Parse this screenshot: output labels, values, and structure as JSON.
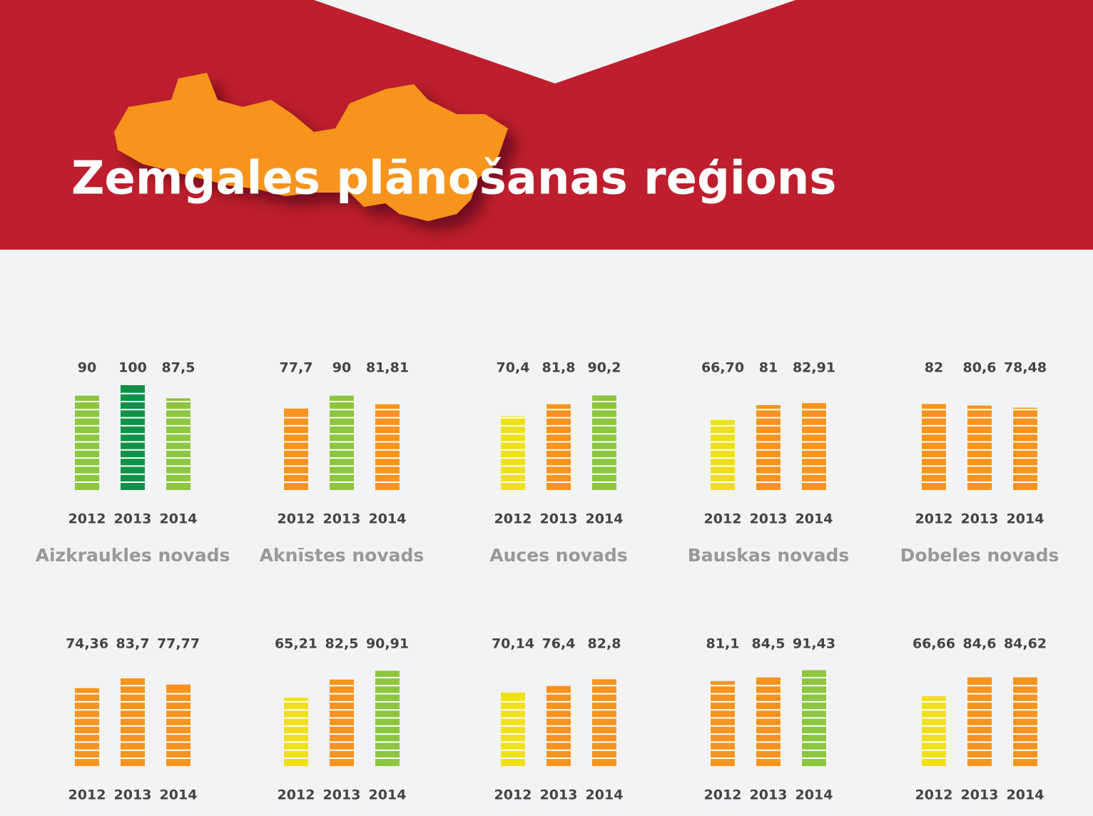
{
  "title": "Zemgales plānošanas reģions",
  "chart_data": [
    {
      "type": "bar",
      "title": "Aizkraukles novads",
      "categories": [
        "2012",
        "2013",
        "2014"
      ],
      "values": [
        90,
        100,
        87.5
      ],
      "value_labels": [
        "90",
        "100",
        "87,5"
      ],
      "colors": [
        "#8dc63f",
        "#0f9146",
        "#8dc63f"
      ],
      "ylim": [
        0,
        100
      ]
    },
    {
      "type": "bar",
      "title": "Aknīstes novads",
      "categories": [
        "2012",
        "2013",
        "2014"
      ],
      "values": [
        77.7,
        90,
        81.81
      ],
      "value_labels": [
        "77,7",
        "90",
        "81,81"
      ],
      "colors": [
        "#f7941d",
        "#8dc63f",
        "#f7941d"
      ],
      "ylim": [
        0,
        100
      ]
    },
    {
      "type": "bar",
      "title": "Auces novads",
      "categories": [
        "2012",
        "2013",
        "2014"
      ],
      "values": [
        70.4,
        81.8,
        90.2
      ],
      "value_labels": [
        "70,4",
        "81,8",
        "90,2"
      ],
      "colors": [
        "#f0e01a",
        "#f7941d",
        "#8dc63f"
      ],
      "ylim": [
        0,
        100
      ]
    },
    {
      "type": "bar",
      "title": "Bauskas novads",
      "categories": [
        "2012",
        "2013",
        "2014"
      ],
      "values": [
        66.7,
        81,
        82.91
      ],
      "value_labels": [
        "66,70",
        "81",
        "82,91"
      ],
      "colors": [
        "#f0e01a",
        "#f7941d",
        "#f7941d"
      ],
      "ylim": [
        0,
        100
      ]
    },
    {
      "type": "bar",
      "title": "Dobeles novads",
      "categories": [
        "2012",
        "2013",
        "2014"
      ],
      "values": [
        82,
        80.6,
        78.48
      ],
      "value_labels": [
        "82",
        "80,6",
        "78,48"
      ],
      "colors": [
        "#f7941d",
        "#f7941d",
        "#f7941d"
      ],
      "ylim": [
        0,
        100
      ]
    },
    {
      "type": "bar",
      "categories": [
        "2012",
        "2013",
        "2014"
      ],
      "values": [
        74.36,
        83.7,
        77.77
      ],
      "value_labels": [
        "74,36",
        "83,7",
        "77,77"
      ],
      "colors": [
        "#f7941d",
        "#f7941d",
        "#f7941d"
      ],
      "ylim": [
        0,
        100
      ]
    },
    {
      "type": "bar",
      "categories": [
        "2012",
        "2013",
        "2014"
      ],
      "values": [
        65.21,
        82.5,
        90.91
      ],
      "value_labels": [
        "65,21",
        "82,5",
        "90,91"
      ],
      "colors": [
        "#f0e01a",
        "#f7941d",
        "#8dc63f"
      ],
      "ylim": [
        0,
        100
      ]
    },
    {
      "type": "bar",
      "categories": [
        "2012",
        "2013",
        "2014"
      ],
      "values": [
        70.14,
        76.4,
        82.8
      ],
      "value_labels": [
        "70,14",
        "76,4",
        "82,8"
      ],
      "colors": [
        "#f0e01a",
        "#f7941d",
        "#f7941d"
      ],
      "ylim": [
        0,
        100
      ]
    },
    {
      "type": "bar",
      "categories": [
        "2012",
        "2013",
        "2014"
      ],
      "values": [
        81.1,
        84.5,
        91.43
      ],
      "value_labels": [
        "81,1",
        "84,5",
        "91,43"
      ],
      "colors": [
        "#f7941d",
        "#f7941d",
        "#8dc63f"
      ],
      "ylim": [
        0,
        100
      ]
    },
    {
      "type": "bar",
      "categories": [
        "2012",
        "2013",
        "2014"
      ],
      "values": [
        66.66,
        84.6,
        84.62
      ],
      "value_labels": [
        "66,66",
        "84,6",
        "84,62"
      ],
      "colors": [
        "#f0e01a",
        "#f7941d",
        "#f7941d"
      ],
      "ylim": [
        0,
        100
      ]
    }
  ]
}
